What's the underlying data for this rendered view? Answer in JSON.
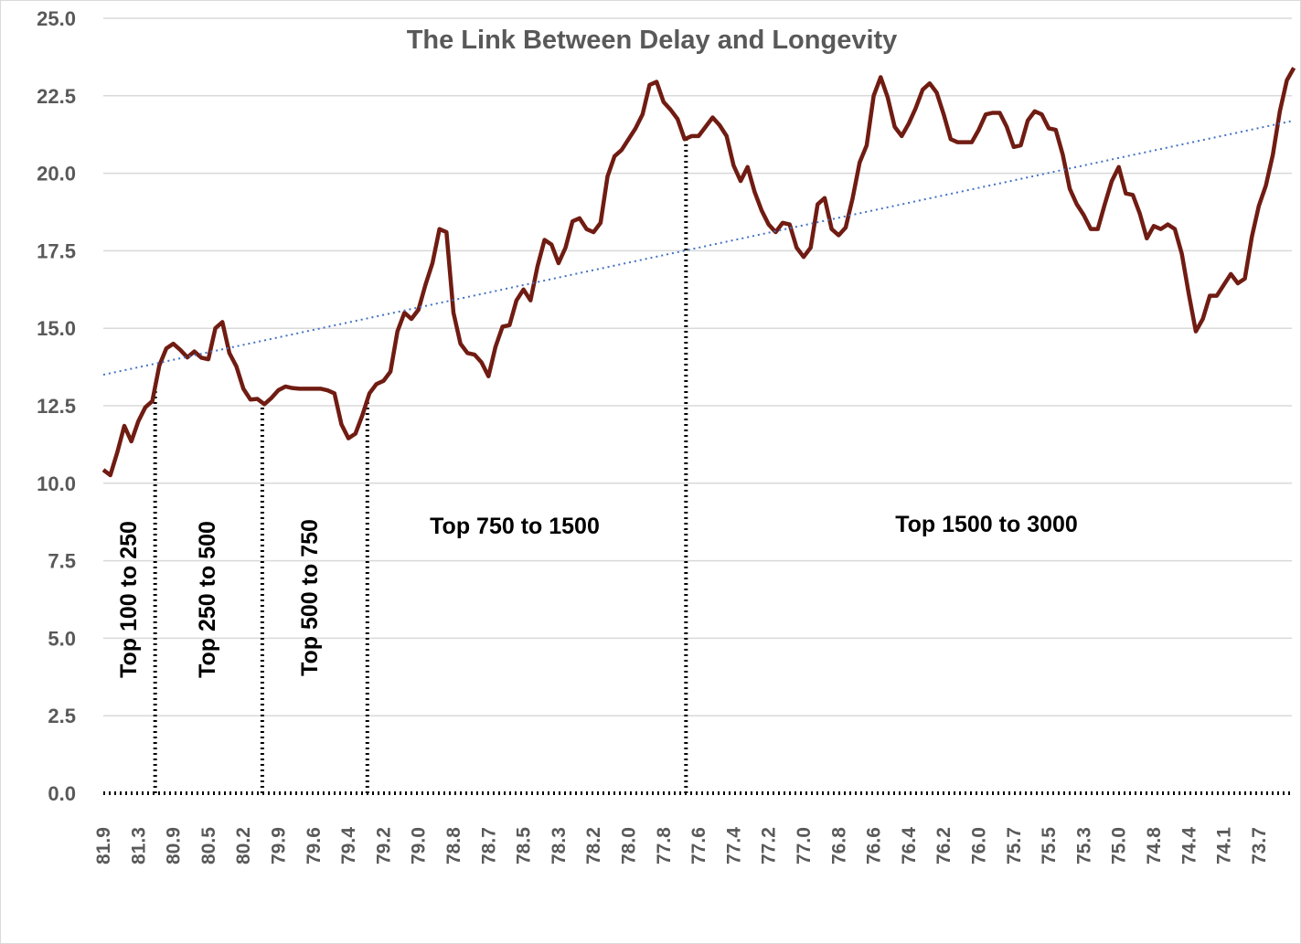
{
  "chart_data": {
    "type": "line",
    "title": "The Link Between Delay and Longevity",
    "xlabel": "",
    "ylabel": "",
    "ylim": [
      0,
      25
    ],
    "y_ticks": [
      "0.0",
      "2.5",
      "5.0",
      "7.5",
      "10.0",
      "12.5",
      "15.0",
      "17.5",
      "20.0",
      "22.5",
      "25.0"
    ],
    "x_tick_labels": [
      "81.9",
      "81.3",
      "80.9",
      "80.5",
      "80.2",
      "79.9",
      "79.6",
      "79.4",
      "79.2",
      "79.0",
      "78.8",
      "78.7",
      "78.5",
      "78.3",
      "78.2",
      "78.0",
      "77.8",
      "77.6",
      "77.4",
      "77.2",
      "77.0",
      "76.8",
      "76.6",
      "76.4",
      "76.2",
      "76.0",
      "75.7",
      "75.5",
      "75.3",
      "75.0",
      "74.8",
      "74.4",
      "74.1",
      "73.7"
    ],
    "grid": true,
    "legend": "none",
    "series": [
      {
        "color": "#701c12",
        "values": [
          10.43,
          10.26,
          11.0,
          11.85,
          11.35,
          12.0,
          12.45,
          12.65,
          13.8,
          14.35,
          14.5,
          14.3,
          14.06,
          14.25,
          14.05,
          14.0,
          15.0,
          15.2,
          14.2,
          13.77,
          13.05,
          12.7,
          12.72,
          12.55,
          12.75,
          13.0,
          13.12,
          13.07,
          13.05,
          13.05,
          13.05,
          13.05,
          13.0,
          12.9,
          11.9,
          11.45,
          11.6,
          12.2,
          12.9,
          13.2,
          13.3,
          13.6,
          14.9,
          15.5,
          15.3,
          15.6,
          16.4,
          17.1,
          18.2,
          18.1,
          15.5,
          14.5,
          14.2,
          14.15,
          13.9,
          13.45,
          14.4,
          15.05,
          15.1,
          15.9,
          16.25,
          15.9,
          17.0,
          17.85,
          17.7,
          17.1,
          17.6,
          18.45,
          18.55,
          18.2,
          18.1,
          18.4,
          19.9,
          20.55,
          20.75,
          21.1,
          21.45,
          21.9,
          22.85,
          22.95,
          22.3,
          22.05,
          21.75,
          21.1,
          21.2,
          21.2,
          21.5,
          21.8,
          21.55,
          21.2,
          20.25,
          19.75,
          20.2,
          19.4,
          18.8,
          18.35,
          18.1,
          18.4,
          18.35,
          17.6,
          17.3,
          17.6,
          19.0,
          19.2,
          18.2,
          18.0,
          18.25,
          19.2,
          20.35,
          20.9,
          22.5,
          23.1,
          22.45,
          21.5,
          21.2,
          21.6,
          22.1,
          22.7,
          22.9,
          22.6,
          21.9,
          21.1,
          21.0,
          21.0,
          21.0,
          21.4,
          21.9,
          21.95,
          21.95,
          21.5,
          20.85,
          20.9,
          21.7,
          22.0,
          21.9,
          21.45,
          21.4,
          20.6,
          19.5,
          19.0,
          18.65,
          18.2,
          18.2,
          19.0,
          19.75,
          20.2,
          19.35,
          19.3,
          18.7,
          17.9,
          18.3,
          18.2,
          18.35,
          18.2,
          17.4,
          16.1,
          14.9,
          15.3,
          16.05,
          16.05,
          16.4,
          16.75,
          16.45,
          16.6,
          17.95,
          18.95,
          19.6,
          20.6,
          22.0,
          23.0,
          23.4
        ]
      }
    ],
    "trendline": {
      "type": "linear",
      "color": "#4472c4",
      "start_value": 13.5,
      "end_value": 21.7
    },
    "dividers": [
      7.4,
      22.7,
      37.7,
      83.2
    ],
    "group_labels": [
      {
        "text": "Top 100 to 250",
        "orientation": "vertical"
      },
      {
        "text": "Top 250 to 500",
        "orientation": "vertical"
      },
      {
        "text": "Top 500 to 750",
        "orientation": "vertical"
      },
      {
        "text": "Top 750 to 1500",
        "orientation": "horizontal"
      },
      {
        "text": "Top 1500 to 3000",
        "orientation": "horizontal"
      }
    ]
  }
}
